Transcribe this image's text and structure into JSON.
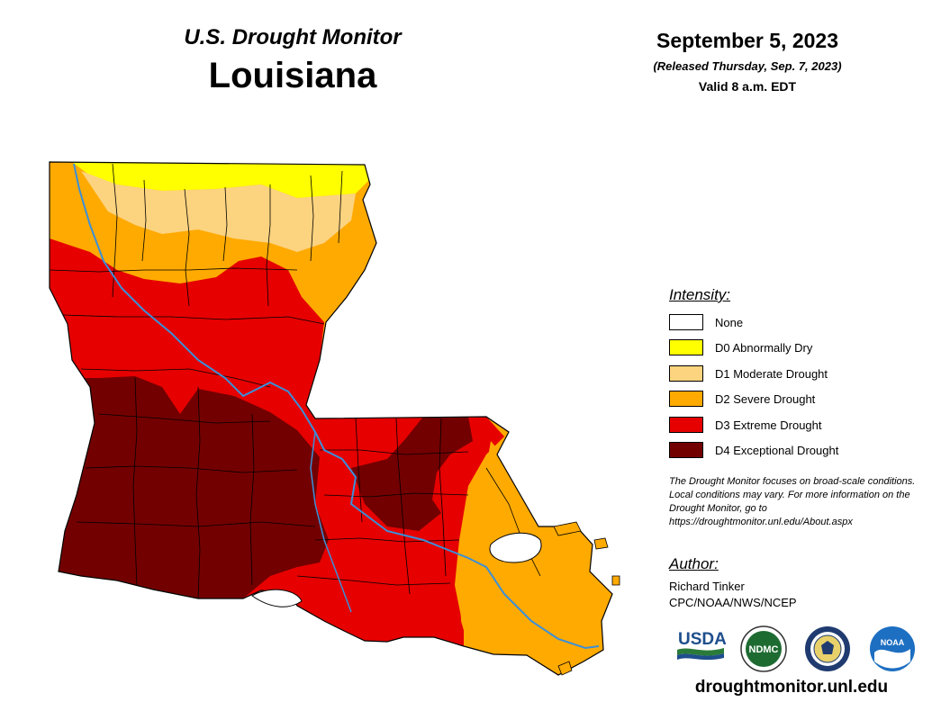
{
  "header": {
    "subtitle": "U.S. Drought Monitor",
    "state": "Louisiana",
    "date": "September 5, 2023",
    "released": "(Released Thursday, Sep. 7, 2023)",
    "valid": "Valid 8 a.m. EDT"
  },
  "legend": {
    "title": "Intensity:",
    "items": [
      {
        "label": "None",
        "color": "#ffffff"
      },
      {
        "label": "D0 Abnormally Dry",
        "color": "#ffff00"
      },
      {
        "label": "D1 Moderate Drought",
        "color": "#fcd37f"
      },
      {
        "label": "D2 Severe Drought",
        "color": "#ffaa00"
      },
      {
        "label": "D3 Extreme Drought",
        "color": "#e60000"
      },
      {
        "label": "D4 Exceptional Drought",
        "color": "#730000"
      }
    ]
  },
  "note": "The Drought Monitor focuses on broad-scale conditions. Local conditions may vary. For more information on the Drought Monitor, go to https://droughtmonitor.unl.edu/About.aspx",
  "author": {
    "title": "Author:",
    "name": "Richard Tinker",
    "org": "CPC/NOAA/NWS/NCEP"
  },
  "logos": {
    "usda": "USDA",
    "ndmc": "NDMC",
    "noaa": "NOAA"
  },
  "website": "droughtmonitor.unl.edu",
  "colors": {
    "river": "#3b8fd9",
    "county_border": "#000000"
  }
}
